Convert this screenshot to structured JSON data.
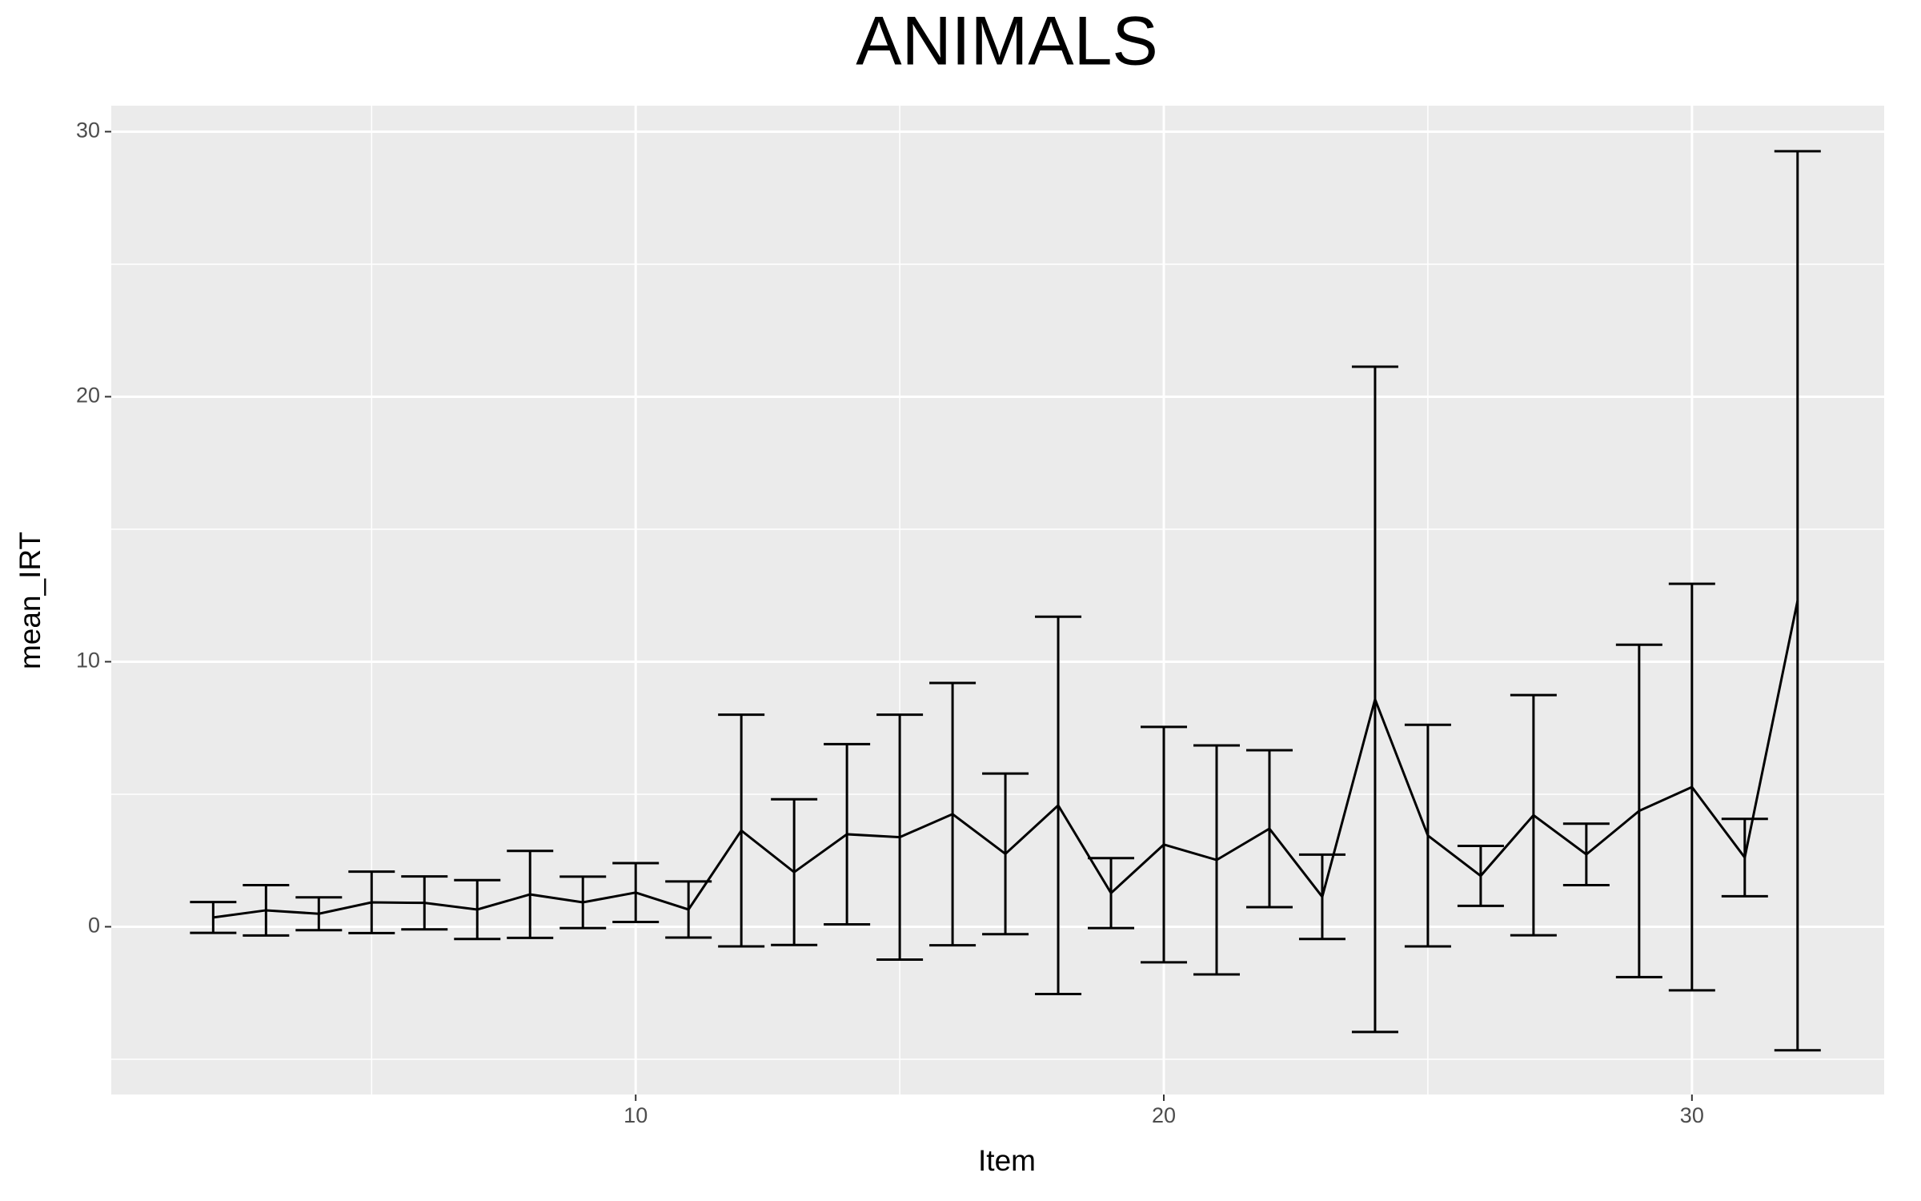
{
  "chart_data": {
    "type": "line",
    "title": "ANIMALS",
    "xlabel": "Item",
    "ylabel": "mean_IRT",
    "x": [
      2,
      3,
      4,
      5,
      6,
      7,
      8,
      9,
      10,
      11,
      12,
      13,
      14,
      15,
      16,
      17,
      18,
      19,
      20,
      21,
      22,
      23,
      24,
      25,
      26,
      27,
      28,
      29,
      30,
      31,
      32
    ],
    "values": [
      0.35,
      0.62,
      0.49,
      0.92,
      0.9,
      0.65,
      1.22,
      0.92,
      1.29,
      0.65,
      3.63,
      2.06,
      3.49,
      3.38,
      4.25,
      2.75,
      4.58,
      1.27,
      3.1,
      2.52,
      3.7,
      1.13,
      8.58,
      3.44,
      1.92,
      4.21,
      2.73,
      4.37,
      5.27,
      2.61,
      12.3
    ],
    "errors": [
      0.58,
      0.95,
      0.62,
      1.16,
      1.0,
      1.11,
      1.64,
      0.97,
      1.11,
      1.06,
      4.37,
      2.75,
      3.4,
      4.62,
      4.95,
      3.03,
      7.12,
      1.32,
      4.44,
      4.32,
      2.96,
      1.59,
      12.55,
      4.18,
      1.13,
      4.53,
      1.16,
      6.27,
      7.67,
      1.46,
      16.96
    ],
    "color": "#000000",
    "xlim": [
      0.07,
      33.64
    ],
    "ylim": [
      -6.33,
      30.98
    ],
    "xticks": [
      10,
      20,
      30
    ],
    "yticks": [
      0,
      10,
      20,
      30
    ],
    "x_minor_grid": [
      5,
      15,
      25
    ],
    "y_minor_grid": [
      -5,
      5,
      15,
      25
    ],
    "grid": true
  }
}
